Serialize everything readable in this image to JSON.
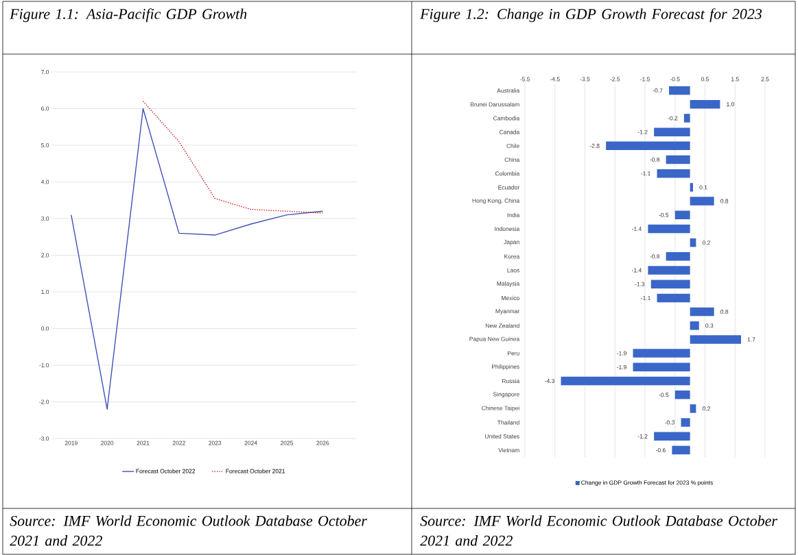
{
  "chart_data": [
    {
      "type": "line",
      "title": "Figure 1.1: Asia-Pacific GDP Growth",
      "annotations": [
        "Source: IMF World Economic Outlook Database October 2021 and 2022"
      ],
      "categories": [
        "2019",
        "2020",
        "2021",
        "2022",
        "2023",
        "2024",
        "2025",
        "2026"
      ],
      "series": [
        {
          "name": "Forecast October 2022",
          "color": "#3f51b5",
          "line_style": "solid",
          "values": [
            3.1,
            -2.2,
            6.0,
            2.6,
            2.55,
            2.85,
            3.1,
            3.2
          ]
        },
        {
          "name": "Forecast October 2021",
          "color": "#d01010",
          "line_style": "dotted",
          "values": [
            null,
            null,
            6.2,
            5.1,
            3.55,
            3.25,
            3.2,
            3.15
          ]
        }
      ],
      "ylim": [
        -3,
        7
      ],
      "yticks": [
        {
          "value": -3,
          "label": "-3.0"
        },
        {
          "value": -2,
          "label": "-2.0"
        },
        {
          "value": -1,
          "label": "-1.0"
        },
        {
          "value": 0,
          "label": "0.0"
        },
        {
          "value": 1,
          "label": "1.0"
        },
        {
          "value": 2,
          "label": "2.0"
        },
        {
          "value": 3,
          "label": "3.0"
        },
        {
          "value": 4,
          "label": "4.0"
        },
        {
          "value": 5,
          "label": "5.0"
        },
        {
          "value": 6,
          "label": "6.0"
        },
        {
          "value": 7,
          "label": "7.0"
        }
      ],
      "grid": "y",
      "legend": "bottom"
    },
    {
      "type": "bar",
      "orientation": "horizontal",
      "title": "Figure 1.2: Change in GDP Growth Forecast for 2023",
      "annotations": [
        "Source: IMF World Economic Outlook Database October 2021 and 2022"
      ],
      "categories": [
        "Australia",
        "Brunei Darussalam",
        "Cambodia",
        "Canada",
        "Chile",
        "China",
        "Colombia",
        "Ecuador",
        "Hong Kong, China",
        "India",
        "Indonesia",
        "Japan",
        "Korea",
        "Laos",
        "Malaysia",
        "Mexico",
        "Myanmar",
        "New Zealand",
        "Papua New Guinea",
        "Peru",
        "Philippines",
        "Russia",
        "Singapore",
        "Chinese Taipei",
        "Thailand",
        "United States",
        "Vietnam"
      ],
      "series": [
        {
          "name": "Change in GDP Growth Forecast for 2023 % points",
          "color": "#3a66c8",
          "values": [
            -0.7,
            1.0,
            -0.2,
            -1.2,
            -2.8,
            -0.8,
            -1.1,
            0.1,
            0.8,
            -0.5,
            -1.4,
            0.2,
            -0.8,
            -1.4,
            -1.3,
            -1.1,
            0.8,
            0.3,
            1.7,
            -1.9,
            -1.9,
            -4.3,
            -0.5,
            0.2,
            -0.3,
            -1.2,
            -0.6
          ]
        }
      ],
      "xlim": [
        -5.5,
        2.5
      ],
      "xticks": [
        -5.5,
        -4.5,
        -3.5,
        -2.5,
        -1.5,
        -0.5,
        0.5,
        1.5,
        2.5
      ],
      "value_labels": [
        "-0.7",
        "1.0",
        "-0.2",
        "-1.2",
        "-2.8",
        "-0.8",
        "-1.1",
        "0.1",
        "0.8",
        "-0.5",
        "-1.4",
        "0.2",
        "-0.8",
        "-1.4",
        "-1.3",
        "-1.1",
        "0.8",
        "0.3",
        "1.7",
        "-1.9",
        "-1.9",
        "-4.3",
        "-0.5",
        "0.2",
        "-0.3",
        "-1.2",
        "-0.6"
      ],
      "grid": "x",
      "legend": "bottom"
    }
  ]
}
